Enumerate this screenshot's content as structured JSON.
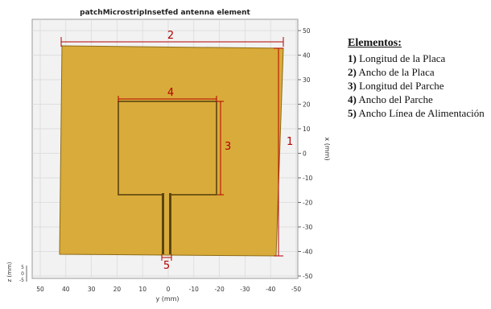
{
  "figure": {
    "title": "patchMicrostripInsetfed antenna element",
    "y_axis_label": "y (mm)",
    "x_axis_label": "x (mm)",
    "z_axis_label": "z (mm)",
    "bottom_ticks": [
      "50",
      "40",
      "30",
      "20",
      "10",
      "0",
      "-10",
      "-20",
      "-30",
      "-40",
      "-50"
    ],
    "right_ticks": [
      "50",
      "40",
      "30",
      "20",
      "10",
      "0",
      "-10",
      "-20",
      "-30",
      "-40",
      "-50"
    ],
    "z_ticks": [
      "5",
      "0",
      "-5"
    ],
    "colors": {
      "plate": "#d9ab3a",
      "plate_edge": "#8a6a18",
      "dimension": "#b40000",
      "axis_bg": "#f0f0f0"
    },
    "dimension_labels": {
      "plate_width": "2",
      "plate_length": "1",
      "patch_width": "4",
      "patch_length": "3",
      "feed_width": "5"
    }
  },
  "legend": {
    "title": "Elementos:",
    "items": [
      {
        "num": "1)",
        "text": "Longitud de la Placa"
      },
      {
        "num": "2)",
        "text": "Ancho de la Placa"
      },
      {
        "num": "3)",
        "text": "Longitud del Parche"
      },
      {
        "num": "4)",
        "text": "Ancho del Parche"
      },
      {
        "num": "5)",
        "text": "Ancho Línea de Alimentación"
      }
    ]
  }
}
